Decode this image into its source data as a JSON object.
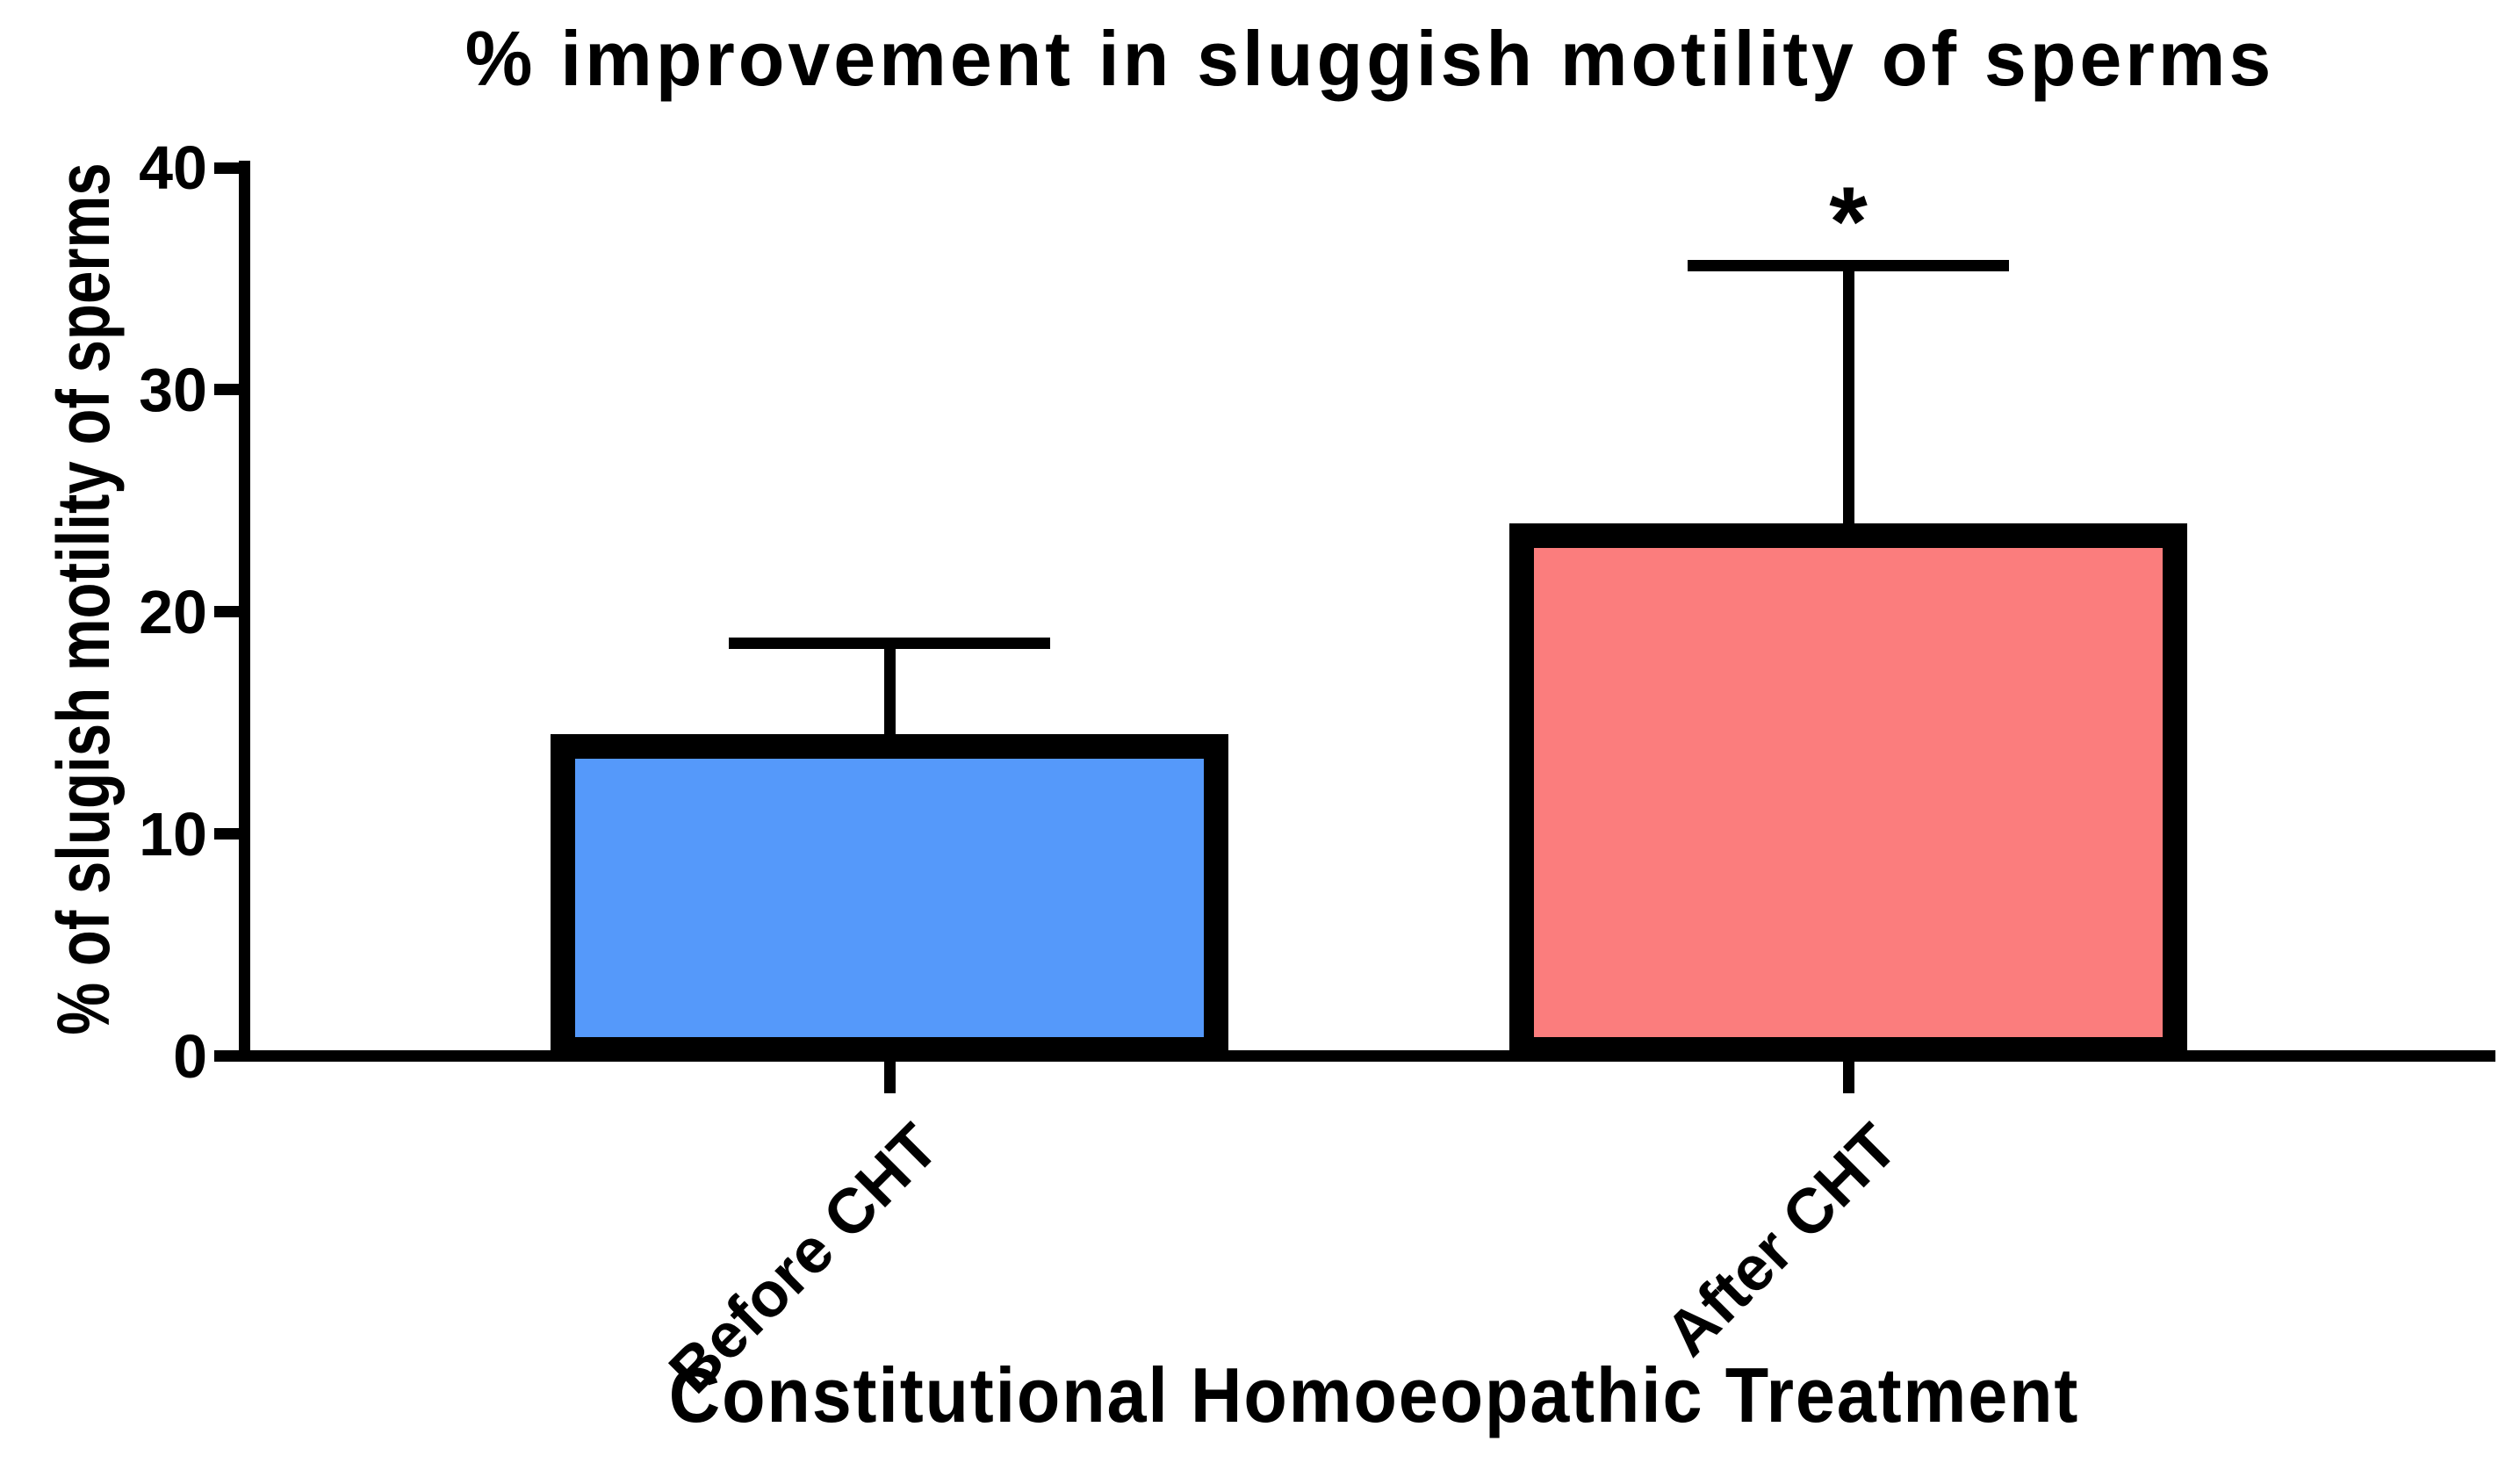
{
  "chart_data": {
    "type": "bar",
    "title": "% improvement in sluggish motility of sperms",
    "xlabel": "Constitutional Homoeopathic Treatment",
    "ylabel": "% of slugish motility of sperms",
    "categories": [
      "Before CHT",
      "After CHT"
    ],
    "values": [
      14.5,
      24
    ],
    "error_upper": [
      18.6,
      35.6
    ],
    "significance": [
      "",
      "*"
    ],
    "ylim": [
      0,
      40
    ],
    "yticks": [
      0,
      10,
      20,
      30,
      40
    ],
    "grid": false,
    "legend": "none",
    "bar_colors": [
      "#5599FA",
      "#FB7D7D"
    ],
    "axis_color": "#000000",
    "background_color": "#FFFFFF"
  }
}
